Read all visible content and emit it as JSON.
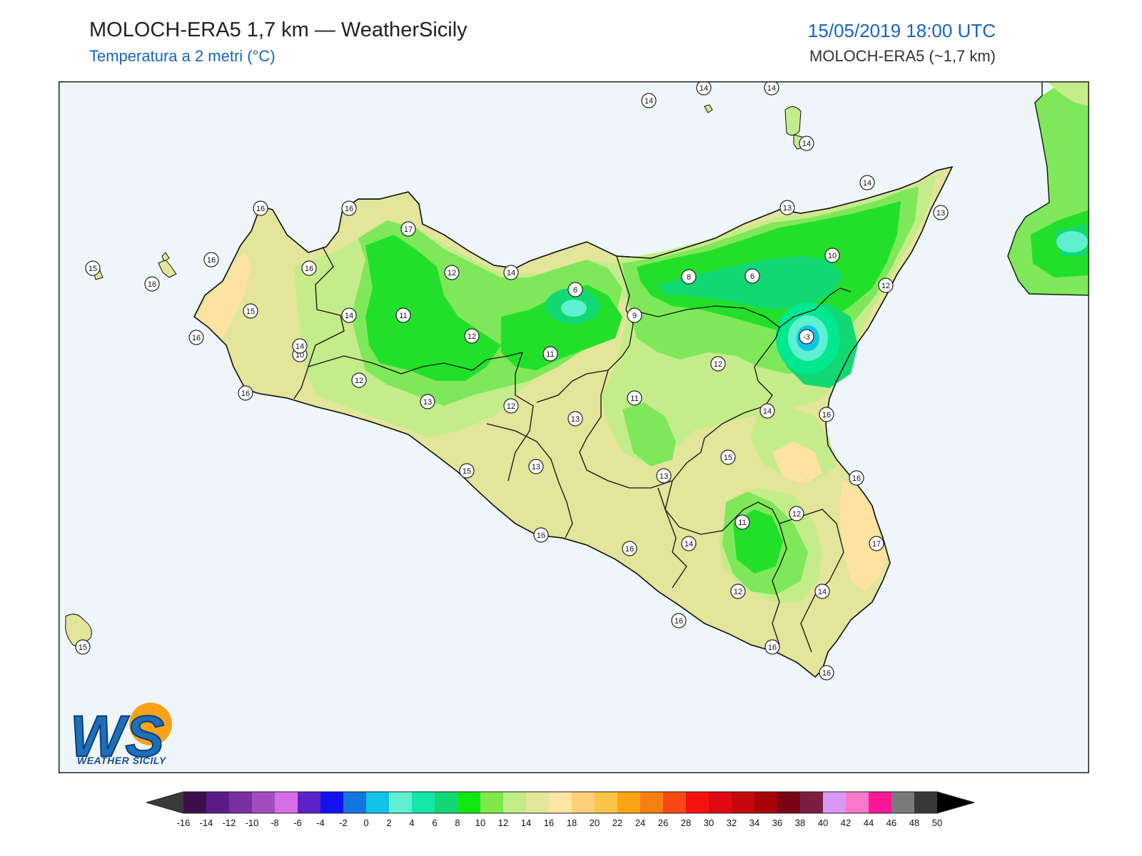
{
  "header": {
    "title": "MOLOCH-ERA5 1,7 km — WeatherSicily",
    "subtitle": "Temperatura a 2 metri (°C)",
    "datetime": "15/05/2019 18:00 UTC",
    "model": "MOLOCH-ERA5 (~1,7 km)"
  },
  "logo": {
    "letters": "WS",
    "text": "WEATHER SICILY"
  },
  "colors": {
    "sea": "#eef6fa",
    "land_warm": "#e2e59a",
    "land_mild": "#c5ec8a",
    "land_cool": "#7ee85a",
    "land_cold": "#22e02a",
    "coast_orange": "#fde2a2",
    "cold_core": "#00e890"
  },
  "colorbar": {
    "ticks": [
      "-16",
      "-14",
      "-12",
      "-10",
      "-8",
      "-6",
      "-4",
      "-2",
      "0",
      "2",
      "4",
      "6",
      "8",
      "10",
      "12",
      "14",
      "16",
      "18",
      "20",
      "22",
      "24",
      "26",
      "28",
      "30",
      "32",
      "34",
      "36",
      "38",
      "40",
      "42",
      "44",
      "46",
      "48",
      "50"
    ],
    "colors": [
      "#3b0f4a",
      "#5b1a85",
      "#7b2fa3",
      "#a24cc0",
      "#d86de8",
      "#5a22c8",
      "#1212f0",
      "#1476dc",
      "#12c2e8",
      "#5ef0d0",
      "#12e6a8",
      "#12d873",
      "#12e612",
      "#7ee84a",
      "#c2ec86",
      "#e2e698",
      "#fde3a4",
      "#fccf7a",
      "#fbc445",
      "#fca412",
      "#f77e12",
      "#f64a12",
      "#f5120e",
      "#de0a12",
      "#c4080e",
      "#a4040a",
      "#780414",
      "#7a1f42",
      "#d898f8",
      "#f878cc",
      "#f81896",
      "#7a7a7a",
      "#383838"
    ],
    "low_cap": "#3a3a3a",
    "high_cap": "#000000"
  },
  "station_values": [
    {
      "v": "14"
    },
    {
      "v": "14"
    },
    {
      "v": "14"
    },
    {
      "v": "14"
    },
    {
      "v": "14"
    },
    {
      "v": "13"
    },
    {
      "v": "13"
    },
    {
      "v": "16"
    },
    {
      "v": "16"
    },
    {
      "v": "17"
    },
    {
      "v": "15"
    },
    {
      "v": "16"
    },
    {
      "v": "16"
    },
    {
      "v": "16"
    },
    {
      "v": "12"
    },
    {
      "v": "14"
    },
    {
      "v": "6"
    },
    {
      "v": "8"
    },
    {
      "v": "6"
    },
    {
      "v": "10"
    },
    {
      "v": "12"
    },
    {
      "v": "15"
    },
    {
      "v": "14"
    },
    {
      "v": "11"
    },
    {
      "v": "9"
    },
    {
      "v": "-3"
    },
    {
      "v": "16"
    },
    {
      "v": "14"
    },
    {
      "v": "12"
    },
    {
      "v": "11"
    },
    {
      "v": "12"
    },
    {
      "v": "16"
    },
    {
      "v": "10"
    },
    {
      "v": "12"
    },
    {
      "v": "13"
    },
    {
      "v": "12"
    },
    {
      "v": "11"
    },
    {
      "v": "14"
    },
    {
      "v": "16"
    },
    {
      "v": "15"
    },
    {
      "v": "13"
    },
    {
      "v": "13"
    },
    {
      "v": "15"
    },
    {
      "v": "13"
    },
    {
      "v": "16"
    },
    {
      "v": "16"
    },
    {
      "v": "12"
    },
    {
      "v": "11"
    },
    {
      "v": "14"
    },
    {
      "v": "17"
    },
    {
      "v": "16"
    },
    {
      "v": "12"
    },
    {
      "v": "14"
    },
    {
      "v": "16"
    },
    {
      "v": "16"
    },
    {
      "v": "16"
    },
    {
      "v": "15"
    }
  ]
}
